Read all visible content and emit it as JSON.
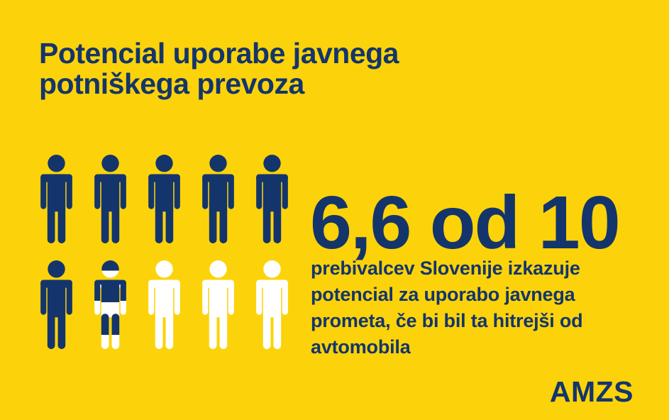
{
  "title": "Potencial uporabe javnega potniškega prevoza",
  "colors": {
    "background": "#FCD30A",
    "navy": "#14356B",
    "white": "#FFFFFF"
  },
  "stat": {
    "value": "6,6 od 10",
    "description": "prebivalcev Slovenije izkazuje potencial za uporabo javnega prometa, če bi bil ta hitrejši od avtomobila"
  },
  "logo": {
    "text": "AMZS"
  },
  "chart_data": {
    "type": "pictogram",
    "title": "Potencial uporabe javnega potniškega prevoza",
    "value": 6.6,
    "total": 10,
    "value_label": "6,6 od 10",
    "caption": "prebivalcev Slovenije izkazuje potencial za uporabo javnega prometa, če bi bil ta hitrejši od avtomobila",
    "icon": "person",
    "rows": 2,
    "icons_per_row": 5,
    "full_icons": 6,
    "partial_icon_fraction": 0.6,
    "empty_icons": 3,
    "filled_color": "#14356B",
    "empty_color": "#FFFFFF"
  }
}
